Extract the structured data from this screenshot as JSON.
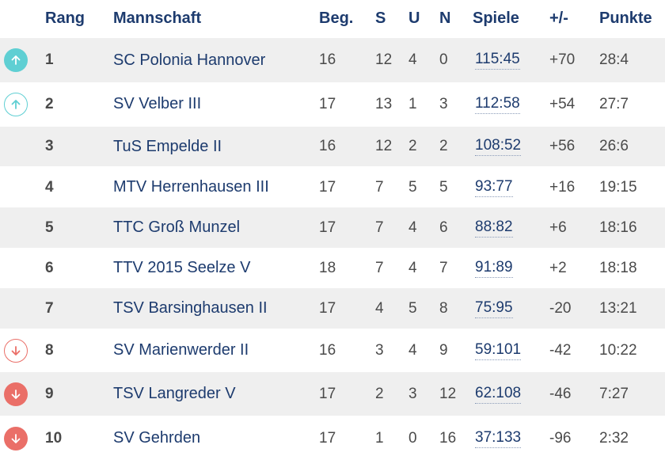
{
  "colors": {
    "up": "#5fcfd3",
    "down": "#ea6f68",
    "shade": "#efefef",
    "text_dark": "#1d3b6e"
  },
  "header": {
    "rang": "Rang",
    "mannschaft": "Mannschaft",
    "beg": "Beg.",
    "s": "S",
    "u": "U",
    "n": "N",
    "spiele": "Spiele",
    "diff": "+/-",
    "punkte": "Punkte"
  },
  "rows": [
    {
      "indicator": "up-filled",
      "icon": "arrow-up-icon",
      "rang": "1",
      "team": "SC Polonia Hannover",
      "beg": "16",
      "s": "12",
      "u": "4",
      "n": "0",
      "spiele": "115:45",
      "diff": "+70",
      "punkte": "28:4"
    },
    {
      "indicator": "up-outline",
      "icon": "arrow-up-icon",
      "rang": "2",
      "team": "SV Velber III",
      "beg": "17",
      "s": "13",
      "u": "1",
      "n": "3",
      "spiele": "112:58",
      "diff": "+54",
      "punkte": "27:7"
    },
    {
      "indicator": "none",
      "icon": "",
      "rang": "3",
      "team": "TuS Empelde II",
      "beg": "16",
      "s": "12",
      "u": "2",
      "n": "2",
      "spiele": "108:52",
      "diff": "+56",
      "punkte": "26:6"
    },
    {
      "indicator": "none",
      "icon": "",
      "rang": "4",
      "team": "MTV Herrenhausen III",
      "beg": "17",
      "s": "7",
      "u": "5",
      "n": "5",
      "spiele": "93:77",
      "diff": "+16",
      "punkte": "19:15"
    },
    {
      "indicator": "none",
      "icon": "",
      "rang": "5",
      "team": "TTC Groß Munzel",
      "beg": "17",
      "s": "7",
      "u": "4",
      "n": "6",
      "spiele": "88:82",
      "diff": "+6",
      "punkte": "18:16"
    },
    {
      "indicator": "none",
      "icon": "",
      "rang": "6",
      "team": "TTV 2015 Seelze V",
      "beg": "18",
      "s": "7",
      "u": "4",
      "n": "7",
      "spiele": "91:89",
      "diff": "+2",
      "punkte": "18:18"
    },
    {
      "indicator": "none",
      "icon": "",
      "rang": "7",
      "team": "TSV Barsinghausen II",
      "beg": "17",
      "s": "4",
      "u": "5",
      "n": "8",
      "spiele": "75:95",
      "diff": "-20",
      "punkte": "13:21"
    },
    {
      "indicator": "down-outline",
      "icon": "arrow-down-icon",
      "rang": "8",
      "team": "SV Marienwerder II",
      "beg": "16",
      "s": "3",
      "u": "4",
      "n": "9",
      "spiele": "59:101",
      "diff": "-42",
      "punkte": "10:22"
    },
    {
      "indicator": "down-filled",
      "icon": "arrow-down-icon",
      "rang": "9",
      "team": "TSV Langreder V",
      "beg": "17",
      "s": "2",
      "u": "3",
      "n": "12",
      "spiele": "62:108",
      "diff": "-46",
      "punkte": "7:27"
    },
    {
      "indicator": "down-filled",
      "icon": "arrow-down-icon",
      "rang": "10",
      "team": "SV Gehrden",
      "beg": "17",
      "s": "1",
      "u": "0",
      "n": "16",
      "spiele": "37:133",
      "diff": "-96",
      "punkte": "2:32"
    }
  ]
}
